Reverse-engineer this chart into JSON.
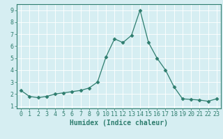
{
  "x": [
    0,
    1,
    2,
    3,
    4,
    5,
    6,
    7,
    8,
    9,
    10,
    11,
    12,
    13,
    14,
    15,
    16,
    17,
    18,
    19,
    20,
    21,
    22,
    23
  ],
  "y": [
    2.3,
    1.8,
    1.7,
    1.8,
    2.0,
    2.1,
    2.2,
    2.3,
    2.5,
    3.0,
    5.1,
    6.6,
    6.3,
    6.9,
    9.0,
    6.3,
    5.0,
    4.0,
    2.6,
    1.6,
    1.55,
    1.5,
    1.4,
    1.6
  ],
  "line_color": "#2e7d6e",
  "marker": "D",
  "marker_size": 2.5,
  "bg_color": "#d6eef2",
  "grid_color": "#ffffff",
  "xlabel": "Humidex (Indice chaleur)",
  "xlim": [
    -0.5,
    23.5
  ],
  "ylim": [
    0.8,
    9.5
  ],
  "yticks": [
    1,
    2,
    3,
    4,
    5,
    6,
    7,
    8,
    9
  ],
  "xticks": [
    0,
    1,
    2,
    3,
    4,
    5,
    6,
    7,
    8,
    9,
    10,
    11,
    12,
    13,
    14,
    15,
    16,
    17,
    18,
    19,
    20,
    21,
    22,
    23
  ],
  "tick_color": "#2e7d6e",
  "label_fontsize": 7,
  "tick_fontsize": 6
}
